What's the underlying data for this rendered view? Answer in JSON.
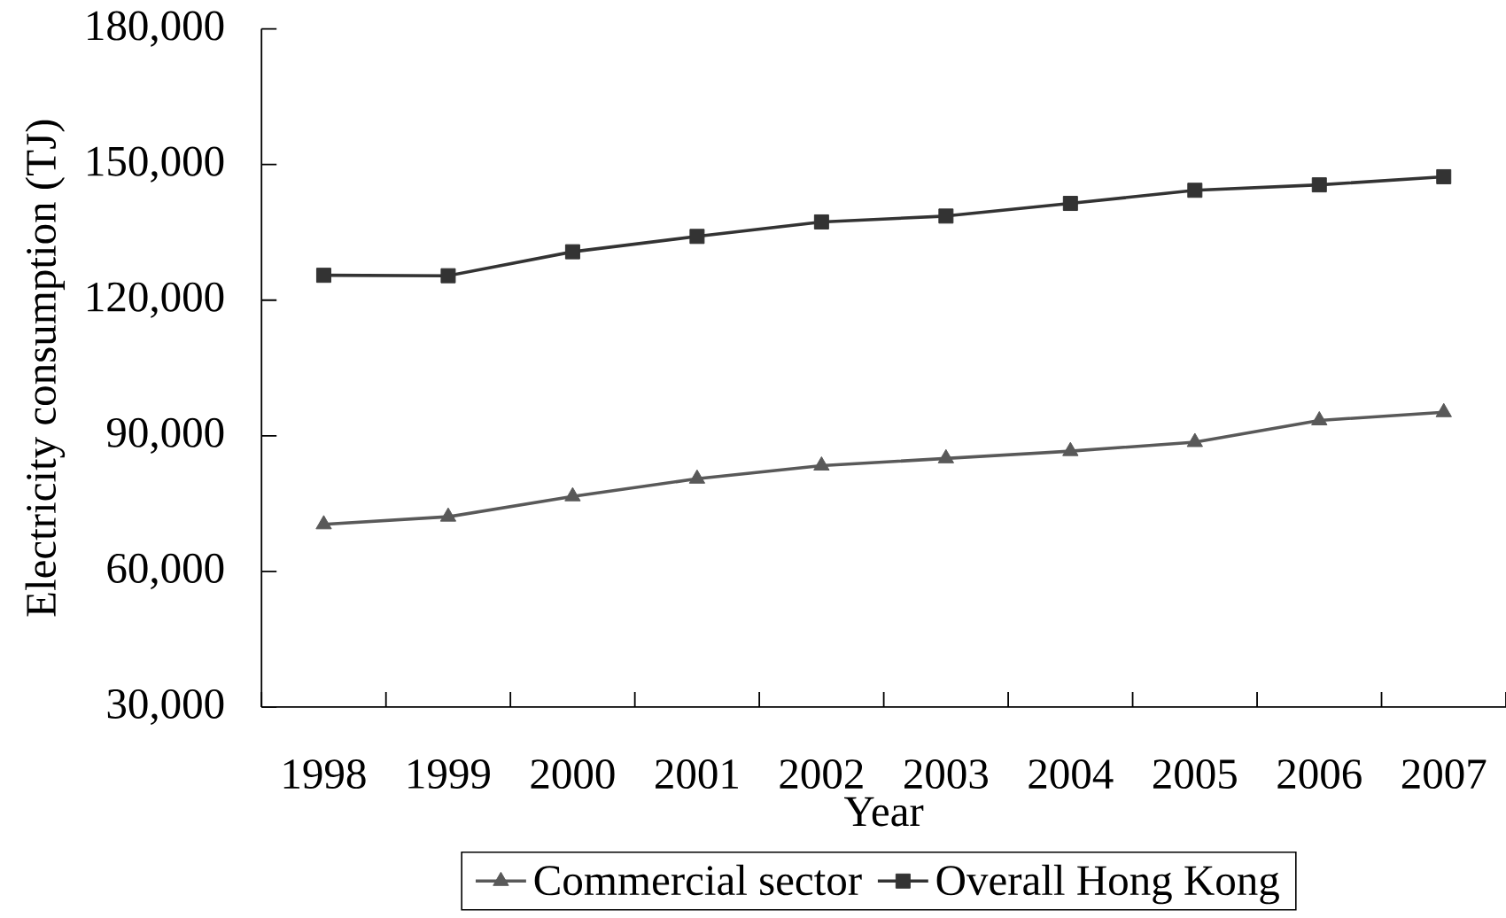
{
  "chart_data": {
    "type": "line",
    "xlabel": "Year",
    "ylabel": "Electricity consumption (TJ)",
    "categories": [
      "1998",
      "1999",
      "2000",
      "2001",
      "2002",
      "2003",
      "2004",
      "2005",
      "2006",
      "2007"
    ],
    "series": [
      {
        "name": "Commercial sector",
        "color": "#595959",
        "marker": "triangle",
        "values": [
          70400,
          72100,
          76600,
          80500,
          83400,
          85000,
          86600,
          88600,
          93400,
          95200
        ]
      },
      {
        "name": "Overall Hong Kong",
        "color": "#333333",
        "marker": "square",
        "values": [
          125500,
          125400,
          130700,
          134100,
          137300,
          138600,
          141400,
          144300,
          145500,
          147300
        ]
      }
    ],
    "ylim": [
      30000,
      180000
    ],
    "yticks": [
      {
        "value": 30000,
        "label": "30,000"
      },
      {
        "value": 60000,
        "label": "60,000"
      },
      {
        "value": 90000,
        "label": "90,000"
      },
      {
        "value": 120000,
        "label": "120,000"
      },
      {
        "value": 150000,
        "label": "150,000"
      },
      {
        "value": 180000,
        "label": "180,000"
      }
    ],
    "legend": "bottom"
  }
}
